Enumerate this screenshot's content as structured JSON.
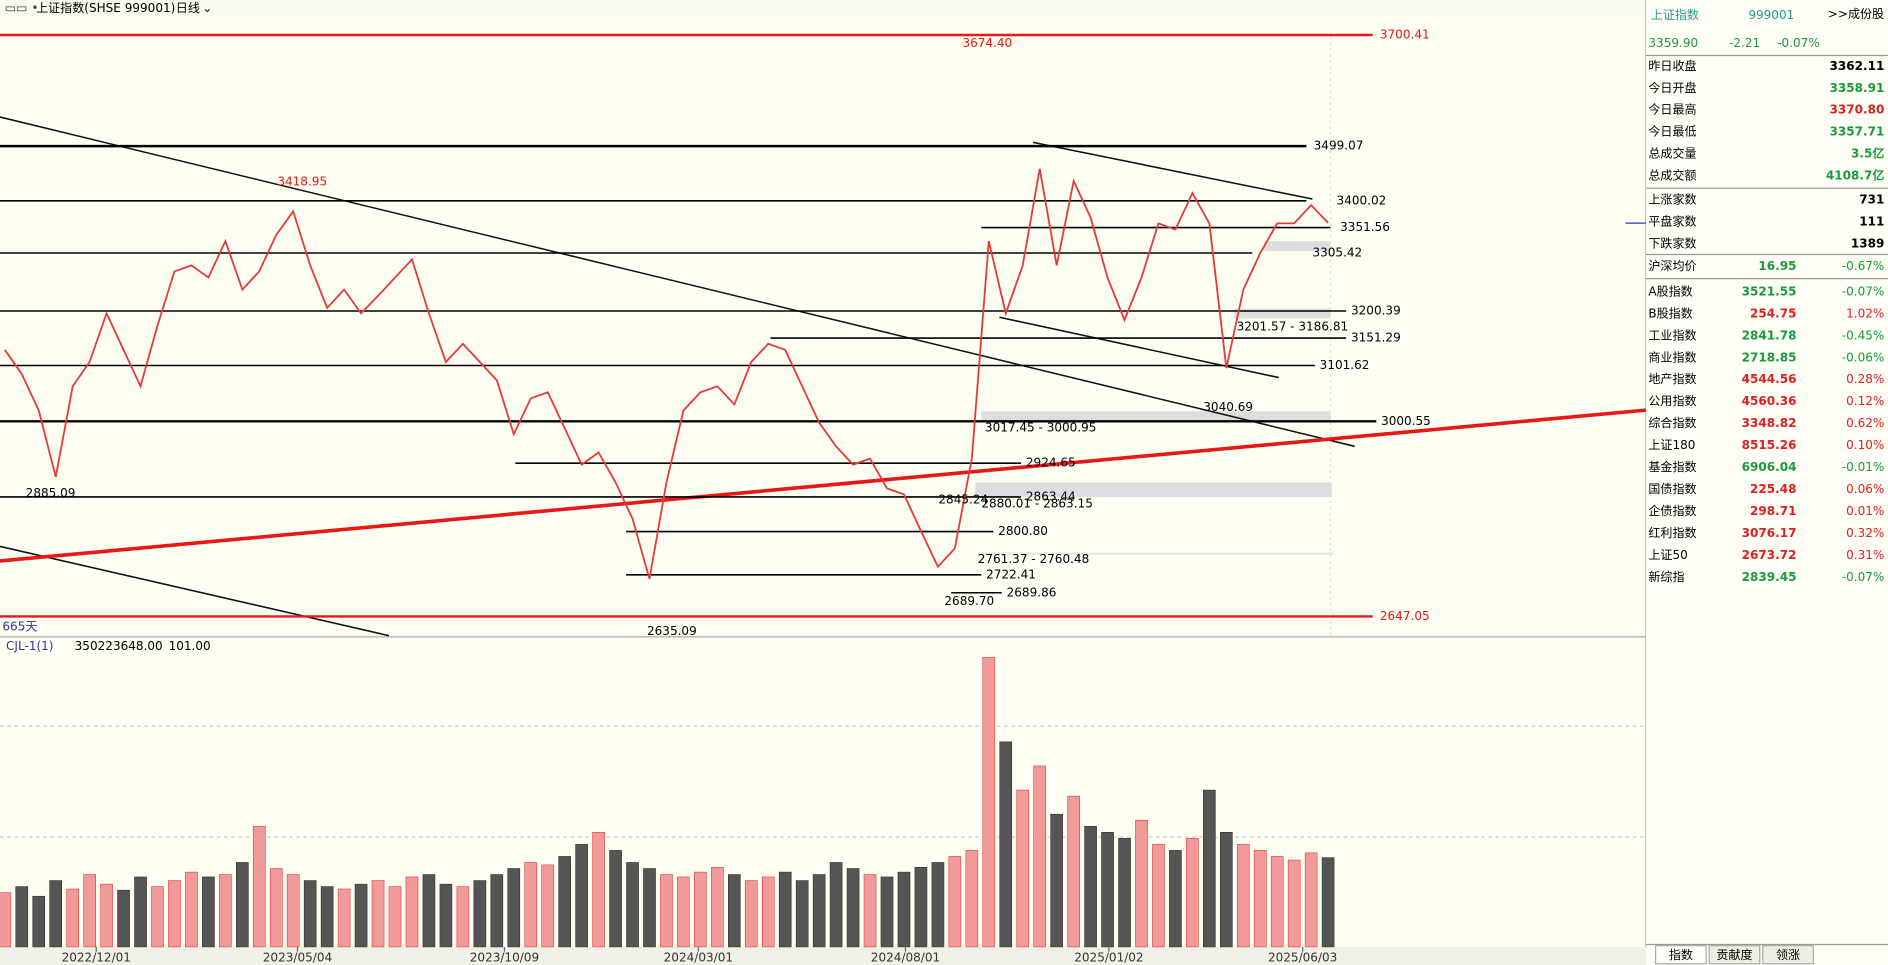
{
  "toolbar": {
    "title": "上证指数(SHSE 999001)",
    "period": "日线"
  },
  "chart_data": {
    "type": "line",
    "ylim": [
      2647.05,
      3700.41
    ],
    "color": "#e03c3c",
    "values": [
      3130,
      3086,
      3020,
      2900,
      3064,
      3108,
      3196,
      3130,
      3064,
      3174,
      3272,
      3283,
      3261,
      3327,
      3239,
      3272,
      3338,
      3381,
      3283,
      3206,
      3239,
      3196,
      3228,
      3261,
      3294,
      3196,
      3108,
      3141,
      3108,
      3075,
      2977,
      3042,
      3053,
      2988,
      2922,
      2944,
      2890,
      2824,
      2715,
      2890,
      3020,
      3053,
      3064,
      3031,
      3108,
      3141,
      3130,
      3064,
      2998,
      2955,
      2922,
      2933,
      2879,
      2868,
      2802,
      2737,
      2770,
      2933,
      3327,
      3196,
      3283,
      3458,
      3283,
      3436,
      3370,
      3261,
      3184,
      3261,
      3359,
      3348,
      3414,
      3359,
      3097,
      3239,
      3305,
      3359,
      3359,
      3392,
      3359.9
    ],
    "xticks": [
      {
        "value": 5.39,
        "label": "2022/12/01"
      },
      {
        "value": 17.25,
        "label": "2023/05/04"
      },
      {
        "value": 29.45,
        "label": "2023/10/09"
      },
      {
        "value": 40.88,
        "label": "2024/03/01"
      },
      {
        "value": 53.09,
        "label": "2024/08/01"
      },
      {
        "value": 65.08,
        "label": "2025/01/02"
      },
      {
        "value": 76.5,
        "label": "2025/06/03"
      }
    ],
    "levels": [
      3700.41,
      3499.07,
      3400.02,
      3351.56,
      3305.42,
      3200.39,
      3151.29,
      3101.62,
      3000.55,
      2924.65,
      2863.44,
      {
        "value": 2800.8,
        "label": "2800.80"
      },
      2722.41,
      2689.86,
      2647.05
    ],
    "peaks": [
      {
        "value": 3674.4,
        "label": "3674.40"
      },
      3418.95,
      2885.09,
      2635.09,
      3040.69,
      {
        "value": 2689.7,
        "label": "2689.70"
      },
      2845.24
    ],
    "zones": [
      "3201.57 - 3186.81",
      "3017.45 - 3000.95",
      "2880.01 - 2863.15",
      "2761.37 - 2760.48"
    ],
    "span": "665天"
  },
  "volume": {
    "label": "CJL-1(1)",
    "readout": [
      "350223648.00",
      "101.00"
    ],
    "values": [
      45,
      50,
      42,
      55,
      48,
      60,
      52,
      47,
      58,
      50,
      55,
      62,
      58,
      60,
      70,
      100,
      65,
      60,
      55,
      50,
      48,
      52,
      55,
      50,
      58,
      60,
      52,
      50,
      55,
      60,
      65,
      70,
      68,
      75,
      85,
      95,
      80,
      70,
      65,
      60,
      58,
      62,
      66,
      60,
      55,
      58,
      62,
      55,
      60,
      70,
      65,
      60,
      58,
      62,
      66,
      70,
      75,
      80,
      240,
      170,
      130,
      150,
      110,
      125,
      100,
      95,
      90,
      105,
      85,
      80,
      90,
      130,
      95,
      85,
      80,
      75,
      72,
      78,
      74
    ]
  },
  "quote": {
    "name": "上证指数",
    "code": "999001",
    "link": ">>成份股",
    "price": "3359.90",
    "change": "-2.21",
    "percent": "-0.07%",
    "color": "#1a9a3a",
    "stats": [
      {
        "label": "昨日收盘",
        "value": "3362.11",
        "color": "#000000"
      },
      {
        "label": "今日开盘",
        "value": "3358.91",
        "color": "#1a9a3a"
      },
      {
        "label": "今日最高",
        "value": "3370.80",
        "color": "#e02020"
      },
      {
        "label": "今日最低",
        "value": "3357.71",
        "color": "#1a9a3a"
      },
      {
        "label": "总成交量",
        "value": "3.5亿",
        "color": "#1a9a3a"
      },
      {
        "label": "总成交额",
        "value": "4108.7亿",
        "color": "#1a9a3a"
      }
    ],
    "breadth": [
      {
        "label": "上涨家数",
        "value": "731",
        "color": "#000000"
      },
      {
        "label": "平盘家数",
        "value": "111",
        "color": "#000000"
      },
      {
        "label": "下跌家数",
        "value": "1389",
        "color": "#000000"
      }
    ],
    "avg": {
      "label": "沪深均价",
      "value": "16.95",
      "percent": "-0.67%"
    },
    "indices": [
      [
        "A股指数",
        "3521.55",
        "-0.07%"
      ],
      [
        "B股指数",
        "254.75",
        "1.02%"
      ],
      [
        "工业指数",
        "2841.78",
        "-0.45%"
      ],
      [
        "商业指数",
        "2718.85",
        "-0.06%"
      ],
      [
        "地产指数",
        "4544.56",
        "0.28%"
      ],
      [
        "公用指数",
        "4560.36",
        "0.12%"
      ],
      [
        "综合指数",
        "3348.82",
        "0.62%"
      ],
      [
        "上证180",
        "8515.26",
        "0.10%"
      ],
      [
        "基金指数",
        "6906.04",
        "-0.01%"
      ],
      [
        "国债指数",
        "225.48",
        "0.06%"
      ],
      [
        "企债指数",
        "298.71",
        "0.01%"
      ],
      [
        "红利指数",
        "3076.17",
        "0.32%"
      ],
      [
        "上证50",
        "2673.72",
        "0.31%"
      ],
      [
        "新综指",
        "2839.45",
        "-0.07%"
      ]
    ],
    "tabs": [
      "指数",
      "贡献度",
      "领涨"
    ]
  }
}
